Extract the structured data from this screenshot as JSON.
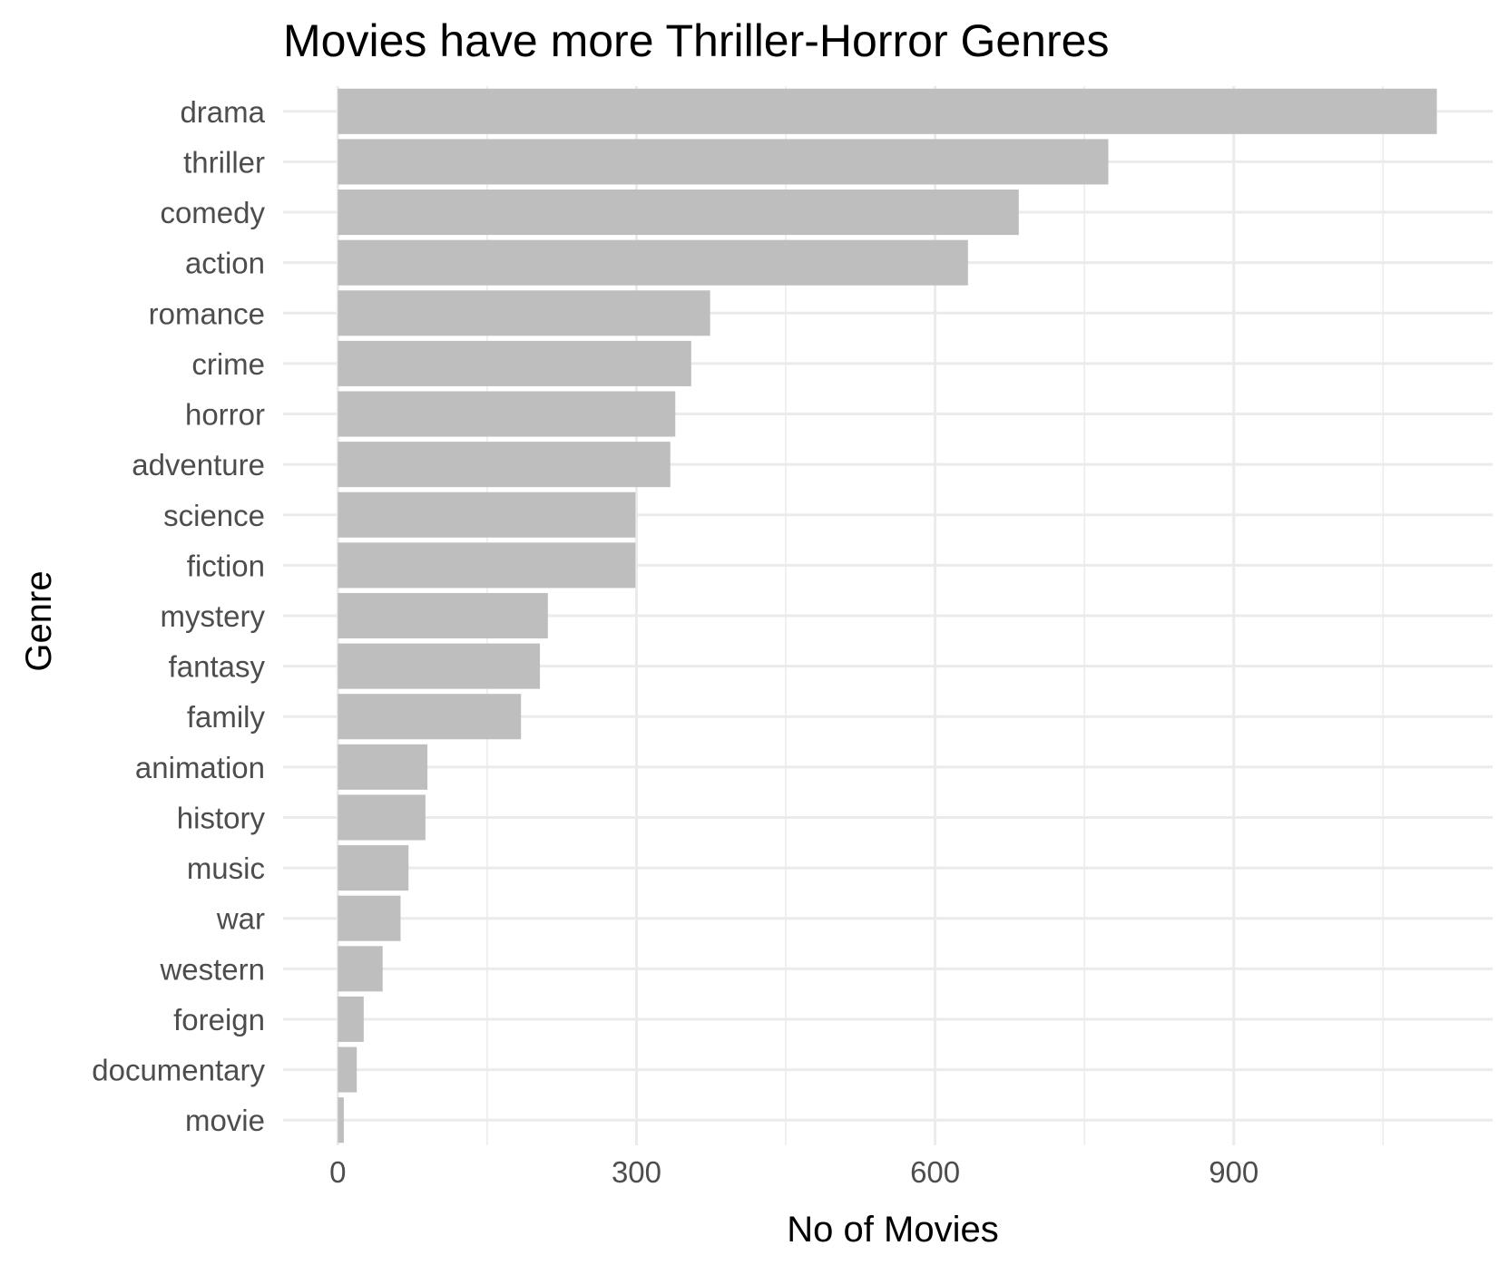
{
  "chart_data": {
    "type": "bar",
    "orientation": "horizontal",
    "title": "Movies have more Thriller-Horror Genres",
    "xlabel": "No of Movies",
    "ylabel": "Genre",
    "categories": [
      "drama",
      "thriller",
      "comedy",
      "action",
      "romance",
      "crime",
      "horror",
      "adventure",
      "science",
      "fiction",
      "mystery",
      "fantasy",
      "family",
      "animation",
      "history",
      "music",
      "war",
      "western",
      "foreign",
      "documentary",
      "movie"
    ],
    "values": [
      1104,
      774,
      684,
      633,
      374,
      355,
      339,
      334,
      299,
      299,
      211,
      203,
      184,
      90,
      88,
      71,
      63,
      45,
      26,
      19,
      6
    ],
    "xlim": [
      -55,
      1160
    ],
    "xticks": [
      0,
      300,
      600,
      900
    ],
    "xtick_labels": [
      "0",
      "300",
      "600",
      "900"
    ],
    "grid": true,
    "bar_color": "#bebebe",
    "grid_color": "#ebebeb"
  }
}
